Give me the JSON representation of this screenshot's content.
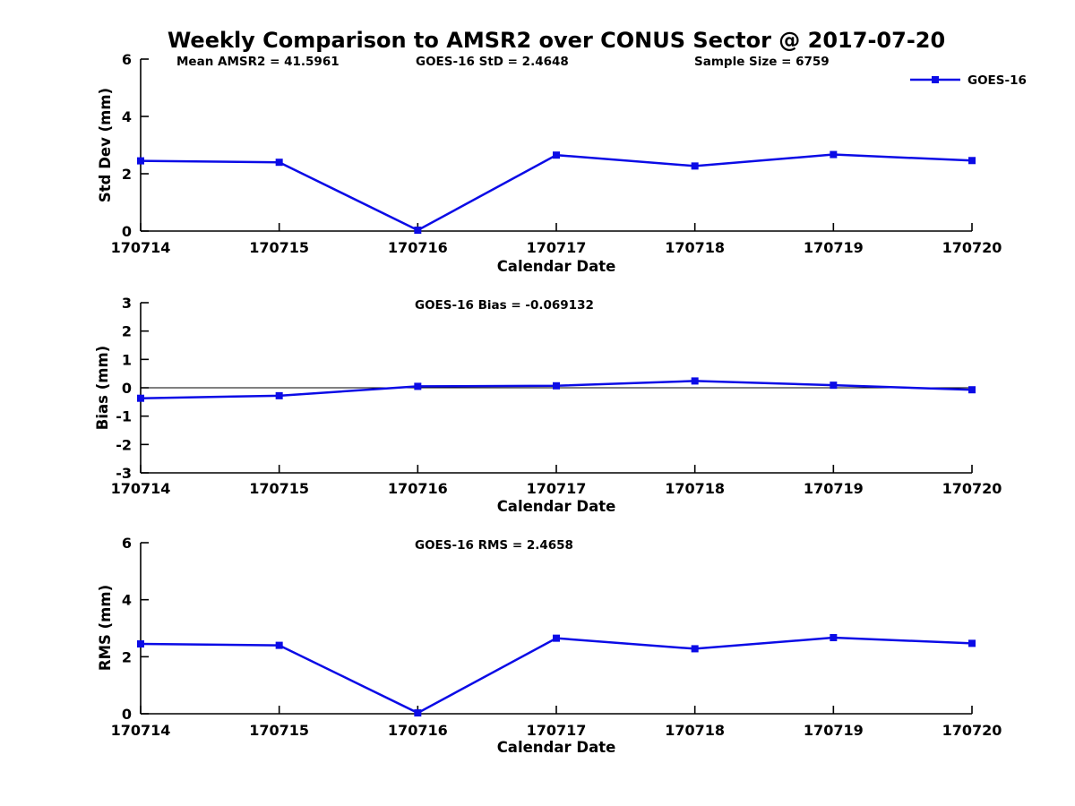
{
  "figure_title": "Weekly Comparison to AMSR2 over CONUS Sector @ 2017-07-20",
  "xlabel": "Calendar Date",
  "legend": {
    "label": "GOES-16",
    "position": "top-right"
  },
  "colors": {
    "series": "#0b0be6",
    "axis": "#000000",
    "text": "#000000",
    "background": "#ffffff"
  },
  "chart_data": [
    {
      "type": "line",
      "title": "Weekly Comparison to AMSR2 over CONUS Sector @ 2017-07-20",
      "xlabel": "Calendar Date",
      "ylabel": "Std Dev (mm)",
      "categories": [
        "170714",
        "170715",
        "170716",
        "170717",
        "170718",
        "170719",
        "170720"
      ],
      "ylim": [
        0,
        6
      ],
      "yticks": [
        0,
        2,
        4,
        6
      ],
      "grid": false,
      "zero_line": false,
      "legend_position": "top-right",
      "annotations": [
        "Mean AMSR2 = 41.5961",
        "GOES-16 StD = 2.4648",
        "Sample Size = 6759"
      ],
      "series": [
        {
          "name": "GOES-16",
          "color": "#0b0be6",
          "marker": "square",
          "values": [
            2.45,
            2.4,
            0.03,
            2.65,
            2.27,
            2.67,
            2.46
          ]
        }
      ]
    },
    {
      "type": "line",
      "title": "",
      "xlabel": "Calendar Date",
      "ylabel": "Bias (mm)",
      "categories": [
        "170714",
        "170715",
        "170716",
        "170717",
        "170718",
        "170719",
        "170720"
      ],
      "ylim": [
        -3,
        3
      ],
      "yticks": [
        3,
        2,
        1,
        0,
        -1,
        -2,
        -3
      ],
      "grid": false,
      "zero_line": true,
      "annotations": [
        "GOES-16 Bias  = -0.069132"
      ],
      "series": [
        {
          "name": "GOES-16",
          "color": "#0b0be6",
          "marker": "square",
          "values": [
            -0.37,
            -0.28,
            0.05,
            0.07,
            0.24,
            0.09,
            -0.07
          ]
        }
      ]
    },
    {
      "type": "line",
      "title": "",
      "xlabel": "Calendar Date",
      "ylabel": "RMS (mm)",
      "categories": [
        "170714",
        "170715",
        "170716",
        "170717",
        "170718",
        "170719",
        "170720"
      ],
      "ylim": [
        0,
        6
      ],
      "yticks": [
        0,
        2,
        4,
        6
      ],
      "grid": false,
      "zero_line": false,
      "annotations": [
        "GOES-16 RMS = 2.4658"
      ],
      "series": [
        {
          "name": "GOES-16",
          "color": "#0b0be6",
          "marker": "square",
          "values": [
            2.45,
            2.4,
            0.03,
            2.65,
            2.28,
            2.67,
            2.47
          ]
        }
      ]
    }
  ]
}
